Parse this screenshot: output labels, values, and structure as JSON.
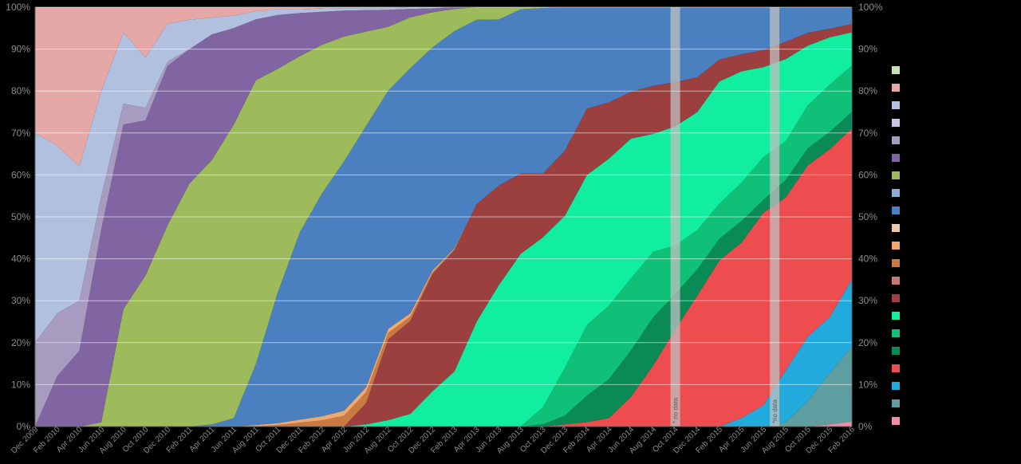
{
  "chart_data": {
    "type": "area",
    "stacked": true,
    "normalized": true,
    "title": "",
    "xlabel": "",
    "ylabel": "",
    "ylim": [
      0,
      100
    ],
    "y_ticks": [
      "0%",
      "10%",
      "20%",
      "30%",
      "40%",
      "50%",
      "60%",
      "70%",
      "80%",
      "90%",
      "100%"
    ],
    "y_tick_values": [
      0,
      10,
      20,
      30,
      40,
      50,
      60,
      70,
      80,
      90,
      100
    ],
    "y_axis_both_sides": true,
    "grid": "horizontal",
    "legend_position": "right",
    "x": [
      "2009-12",
      "2010-02",
      "2010-04",
      "2010-06",
      "2010-08",
      "2010-10",
      "2010-12",
      "2011-02",
      "2011-04",
      "2011-06",
      "2011-08",
      "2011-10",
      "2011-12",
      "2012-02",
      "2012-04",
      "2012-06",
      "2012-08",
      "2012-10",
      "2012-12",
      "2013-02",
      "2013-04",
      "2013-06",
      "2013-08",
      "2013-10",
      "2013-12",
      "2014-02",
      "2014-04",
      "2014-06",
      "2014-08",
      "2014-10",
      "2014-12",
      "2015-02",
      "2015-04",
      "2015-06",
      "2015-08",
      "2015-10",
      "2015-12",
      "2016-02"
    ],
    "x_tick_labels": [
      "Dec 2009",
      "Feb 2010",
      "Apr 2010",
      "Jun 2010",
      "Aug 2010",
      "Oct 2010",
      "Dec 2010",
      "Feb 2011",
      "Apr 2011",
      "Jun 2011",
      "Aug 2011",
      "Oct 2011",
      "Dec 2011",
      "Feb 2012",
      "Apr 2012",
      "Jun 2012",
      "Aug 2012",
      "Oct 2012",
      "Dec 2012",
      "Feb 2013",
      "Apr 2013",
      "Jun 2013",
      "Aug 2013",
      "Oct 2013",
      "Dec 2013",
      "Feb 2014",
      "Apr 2014",
      "Jun 2014",
      "Aug 2014",
      "Oct 2014",
      "Dec 2014",
      "Feb 2015",
      "Apr 2015",
      "Jun 2015",
      "Aug 2015",
      "Oct 2015",
      "Dec 2015",
      "Feb 2016"
    ],
    "gaps": [
      {
        "date": "2014-10",
        "label": "* no data"
      },
      {
        "date": "2015-07",
        "label": "*no data"
      }
    ],
    "series": [
      {
        "color": "#f08ca8",
        "values": [
          0,
          0,
          0,
          0,
          0,
          0,
          0,
          0,
          0,
          0,
          0,
          0,
          0,
          0,
          0,
          0,
          0,
          0,
          0,
          0,
          0,
          0,
          0,
          0,
          0,
          0,
          0,
          0,
          0,
          0,
          0,
          0,
          0,
          0,
          0,
          0,
          0.5,
          1.2
        ]
      },
      {
        "color": "#5f9ea0",
        "values": [
          0,
          0,
          0,
          0,
          0,
          0,
          0,
          0,
          0,
          0,
          0,
          0,
          0,
          0,
          0,
          0,
          0,
          0,
          0,
          0,
          0,
          0,
          0,
          0,
          0,
          0,
          0,
          0,
          0,
          0,
          0,
          0,
          0,
          0,
          1,
          6,
          12,
          18
        ]
      },
      {
        "color": "#22aadd",
        "values": [
          0,
          0,
          0,
          0,
          0,
          0,
          0,
          0,
          0,
          0,
          0,
          0,
          0,
          0,
          0,
          0,
          0,
          0,
          0,
          0,
          0,
          0,
          0,
          0,
          0,
          0,
          0,
          0,
          0,
          0,
          0,
          0,
          2,
          5,
          12,
          15,
          13,
          16
        ]
      },
      {
        "color": "#ee4d4f",
        "values": [
          0,
          0,
          0,
          0,
          0,
          0,
          0,
          0,
          0,
          0,
          0,
          0,
          0,
          0,
          0,
          0,
          0,
          0,
          0,
          0,
          0,
          0,
          0,
          0,
          0.5,
          1,
          2,
          7,
          14,
          22,
          30,
          38,
          41,
          45,
          40,
          40,
          39,
          36
        ]
      },
      {
        "color": "#0a8a55",
        "values": [
          0,
          0,
          0,
          0,
          0,
          0,
          0,
          0,
          0,
          0,
          0,
          0,
          0,
          0,
          0,
          0,
          0,
          0,
          0,
          0,
          0,
          0,
          0,
          0.5,
          2,
          6,
          9,
          11,
          11,
          8,
          6,
          5,
          5,
          3,
          4,
          4,
          4,
          4
        ]
      },
      {
        "color": "#10c078",
        "values": [
          0,
          0,
          0,
          0,
          0,
          0,
          0,
          0,
          0,
          0,
          0,
          0,
          0,
          0,
          0,
          0,
          0,
          0,
          0,
          0,
          0,
          0,
          0,
          4,
          11,
          16,
          17,
          17,
          15,
          11,
          9,
          8,
          9,
          10,
          9,
          10,
          11,
          11
        ]
      },
      {
        "color": "#12eea0",
        "values": [
          0,
          0,
          0,
          0,
          0,
          0,
          0,
          0,
          0,
          0,
          0,
          0,
          0,
          0,
          0,
          0.5,
          1.5,
          3,
          9,
          15,
          25,
          34,
          41,
          40,
          35,
          34,
          34,
          33,
          27,
          27,
          27,
          28,
          26,
          21,
          19,
          14,
          11,
          8
        ]
      },
      {
        "color": "#9c3f3f",
        "values": [
          0,
          0,
          0,
          0,
          0,
          0,
          0,
          0,
          0,
          0,
          0,
          0,
          0,
          0,
          0,
          5,
          19,
          22,
          30,
          33,
          28,
          24,
          19,
          15,
          15,
          15,
          13,
          11,
          11,
          10,
          8,
          5,
          4,
          4,
          4,
          3,
          2,
          2
        ]
      },
      {
        "color": "#c97a40",
        "values": [
          0,
          0,
          0,
          0,
          0,
          0,
          0,
          0,
          0,
          0,
          0,
          0.4,
          1,
          1.5,
          2.5,
          2.5,
          1.5,
          1,
          0.4,
          0.2,
          0,
          0,
          0,
          0,
          0,
          0,
          0,
          0,
          0,
          0,
          0,
          0,
          0,
          0,
          0,
          0,
          0,
          0
        ]
      },
      {
        "color": "#f0a770",
        "values": [
          0,
          0,
          0,
          0,
          0,
          0,
          0,
          0,
          0,
          0,
          0.4,
          0.5,
          0.8,
          1,
          1.2,
          1.2,
          1,
          0.8,
          0.5,
          0.3,
          0,
          0,
          0,
          0,
          0,
          0,
          0,
          0,
          0,
          0,
          0,
          0,
          0,
          0,
          0,
          0,
          0,
          0
        ]
      },
      {
        "color": "#4b80c0",
        "values": [
          0,
          0,
          0,
          0,
          0,
          0,
          0,
          0,
          0.5,
          2,
          15,
          34,
          48,
          54,
          58,
          61,
          56,
          58,
          57,
          59,
          44,
          40,
          39,
          39,
          33,
          23,
          22,
          20,
          18,
          17,
          16,
          12,
          11,
          10,
          8,
          6,
          5,
          4
        ]
      },
      {
        "color": "#9dbb5a",
        "values": [
          0,
          0,
          0,
          1,
          28,
          36,
          48,
          58,
          63,
          70,
          70,
          58,
          45,
          36,
          29,
          22,
          15,
          12,
          9,
          6,
          3,
          3,
          0.5,
          0.2,
          0,
          0,
          0,
          0,
          0,
          0,
          0,
          0,
          0,
          0,
          0,
          0,
          0,
          0
        ]
      },
      {
        "color": "#8065a2",
        "values": [
          0,
          12,
          18,
          46,
          44,
          37,
          38,
          32,
          30,
          23,
          15,
          14,
          11,
          8,
          6,
          5,
          4,
          2,
          1,
          0.5,
          0,
          0,
          0,
          0,
          0,
          0,
          0,
          0,
          0,
          0,
          0,
          0,
          0,
          0,
          0,
          0,
          0,
          0
        ]
      },
      {
        "color": "#a89bc0",
        "values": [
          20,
          15,
          12,
          8,
          5,
          3,
          1,
          0,
          0,
          0,
          0,
          0,
          0,
          0,
          0,
          0,
          0,
          0,
          0,
          0,
          0,
          0,
          0,
          0,
          0,
          0,
          0,
          0,
          0,
          0,
          0,
          0,
          0,
          0,
          0,
          0,
          0,
          0
        ]
      },
      {
        "color": "#b0c0de",
        "values": [
          50,
          40,
          32,
          25,
          17,
          12,
          9,
          7,
          4,
          3,
          2,
          1.5,
          1,
          0.8,
          0.6,
          0.5,
          0.4,
          0.3,
          0.2,
          0,
          0,
          0,
          0,
          0,
          0,
          0,
          0,
          0,
          0,
          0,
          0,
          0,
          0,
          0,
          0,
          0,
          0,
          0
        ]
      },
      {
        "color": "#e6a8a6",
        "values": [
          30,
          33,
          38,
          20,
          6,
          12,
          4,
          3,
          2.5,
          2,
          1,
          0.5,
          0.5,
          0.3,
          0.2,
          0.2,
          0.2,
          0.1,
          0.1,
          0,
          0,
          0,
          0,
          0,
          0,
          0,
          0,
          0,
          0,
          0,
          0,
          0,
          0,
          0,
          0,
          0,
          0,
          0
        ]
      }
    ],
    "legend_swatches": [
      "#c9e0b4",
      "#e6a8a6",
      "#b0c0de",
      "#c8c8e6",
      "#a89bc0",
      "#8065a2",
      "#9dbb5a",
      "#8aacd8",
      "#4b80c0",
      "#f0c8a8",
      "#f0a770",
      "#c97a40",
      "#c87878",
      "#9c3f3f",
      "#12eea0",
      "#10c078",
      "#0a8a55",
      "#ee4d4f",
      "#22aadd",
      "#5f9ea0",
      "#f08ca8"
    ]
  }
}
